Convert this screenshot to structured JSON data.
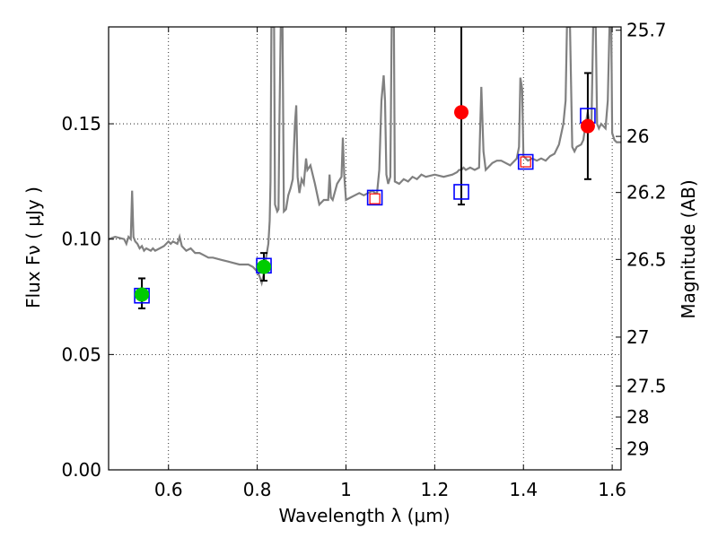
{
  "chart_data": {
    "type": "scatter",
    "title": "",
    "xlabel": "Wavelength  λ (μm)",
    "ylabel_left": "Flux  Fν  ( μJy )",
    "ylabel_right": "Magnitude (AB)",
    "xlim": [
      0.465,
      1.62
    ],
    "ylim": [
      0.0,
      0.192
    ],
    "grid": "dotted",
    "x_ticks": [
      {
        "value": 0.6,
        "label": "0.6"
      },
      {
        "value": 0.8,
        "label": "0.8"
      },
      {
        "value": 1.0,
        "label": "1"
      },
      {
        "value": 1.2,
        "label": "1.2"
      },
      {
        "value": 1.4,
        "label": "1.4"
      },
      {
        "value": 1.6,
        "label": "1.6"
      }
    ],
    "y_ticks": [
      {
        "value": 0.0,
        "label": "0.00"
      },
      {
        "value": 0.05,
        "label": "0.05"
      },
      {
        "value": 0.1,
        "label": "0.10"
      },
      {
        "value": 0.15,
        "label": "0.15"
      }
    ],
    "mag_ticks": [
      {
        "value": 25.7,
        "label": "25.7"
      },
      {
        "value": 26.0,
        "label": "26"
      },
      {
        "value": 26.2,
        "label": "26.2"
      },
      {
        "value": 26.5,
        "label": "26.5"
      },
      {
        "value": 27.0,
        "label": "27"
      },
      {
        "value": 27.5,
        "label": "27.5"
      },
      {
        "value": 28.0,
        "label": "28"
      },
      {
        "value": 29.0,
        "label": "29"
      }
    ],
    "spectrum": {
      "name": "model-spectrum",
      "color": "#808080",
      "points": [
        [
          0.465,
          0.1
        ],
        [
          0.48,
          0.101
        ],
        [
          0.5,
          0.1
        ],
        [
          0.505,
          0.098
        ],
        [
          0.51,
          0.101
        ],
        [
          0.515,
          0.1
        ],
        [
          0.518,
          0.121
        ],
        [
          0.521,
          0.101
        ],
        [
          0.525,
          0.099
        ],
        [
          0.53,
          0.098
        ],
        [
          0.535,
          0.096
        ],
        [
          0.54,
          0.097
        ],
        [
          0.545,
          0.095
        ],
        [
          0.55,
          0.096
        ],
        [
          0.56,
          0.095
        ],
        [
          0.565,
          0.096
        ],
        [
          0.57,
          0.095
        ],
        [
          0.58,
          0.096
        ],
        [
          0.59,
          0.097
        ],
        [
          0.6,
          0.099
        ],
        [
          0.605,
          0.098
        ],
        [
          0.61,
          0.099
        ],
        [
          0.62,
          0.098
        ],
        [
          0.625,
          0.101
        ],
        [
          0.63,
          0.097
        ],
        [
          0.64,
          0.095
        ],
        [
          0.65,
          0.096
        ],
        [
          0.66,
          0.094
        ],
        [
          0.67,
          0.094
        ],
        [
          0.68,
          0.093
        ],
        [
          0.69,
          0.092
        ],
        [
          0.7,
          0.092
        ],
        [
          0.72,
          0.091
        ],
        [
          0.74,
          0.09
        ],
        [
          0.76,
          0.089
        ],
        [
          0.78,
          0.089
        ],
        [
          0.79,
          0.088
        ],
        [
          0.8,
          0.086
        ],
        [
          0.805,
          0.084
        ],
        [
          0.81,
          0.081
        ],
        [
          0.815,
          0.085
        ],
        [
          0.82,
          0.092
        ],
        [
          0.825,
          0.098
        ],
        [
          0.828,
          0.108
        ],
        [
          0.83,
          0.125
        ],
        [
          0.832,
          0.192
        ],
        [
          0.838,
          0.192
        ],
        [
          0.84,
          0.115
        ],
        [
          0.845,
          0.112
        ],
        [
          0.848,
          0.113
        ],
        [
          0.85,
          0.15
        ],
        [
          0.853,
          0.192
        ],
        [
          0.857,
          0.192
        ],
        [
          0.86,
          0.112
        ],
        [
          0.865,
          0.113
        ],
        [
          0.87,
          0.119
        ],
        [
          0.875,
          0.122
        ],
        [
          0.88,
          0.126
        ],
        [
          0.885,
          0.15
        ],
        [
          0.888,
          0.158
        ],
        [
          0.891,
          0.127
        ],
        [
          0.895,
          0.12
        ],
        [
          0.9,
          0.126
        ],
        [
          0.905,
          0.124
        ],
        [
          0.91,
          0.135
        ],
        [
          0.913,
          0.13
        ],
        [
          0.92,
          0.132
        ],
        [
          0.93,
          0.124
        ],
        [
          0.94,
          0.115
        ],
        [
          0.95,
          0.117
        ],
        [
          0.96,
          0.117
        ],
        [
          0.963,
          0.128
        ],
        [
          0.966,
          0.118
        ],
        [
          0.97,
          0.117
        ],
        [
          0.98,
          0.124
        ],
        [
          0.99,
          0.127
        ],
        [
          0.993,
          0.144
        ],
        [
          0.996,
          0.128
        ],
        [
          1.0,
          0.117
        ],
        [
          1.01,
          0.118
        ],
        [
          1.02,
          0.119
        ],
        [
          1.03,
          0.12
        ],
        [
          1.04,
          0.119
        ],
        [
          1.05,
          0.12
        ],
        [
          1.06,
          0.121
        ],
        [
          1.065,
          0.12
        ],
        [
          1.07,
          0.12
        ],
        [
          1.075,
          0.13
        ],
        [
          1.08,
          0.16
        ],
        [
          1.085,
          0.171
        ],
        [
          1.088,
          0.16
        ],
        [
          1.091,
          0.128
        ],
        [
          1.095,
          0.124
        ],
        [
          1.1,
          0.127
        ],
        [
          1.103,
          0.192
        ],
        [
          1.108,
          0.192
        ],
        [
          1.11,
          0.125
        ],
        [
          1.12,
          0.124
        ],
        [
          1.13,
          0.126
        ],
        [
          1.14,
          0.125
        ],
        [
          1.15,
          0.127
        ],
        [
          1.16,
          0.126
        ],
        [
          1.17,
          0.128
        ],
        [
          1.18,
          0.127
        ],
        [
          1.2,
          0.128
        ],
        [
          1.22,
          0.127
        ],
        [
          1.24,
          0.128
        ],
        [
          1.25,
          0.129
        ],
        [
          1.255,
          0.13
        ],
        [
          1.26,
          0.13
        ],
        [
          1.265,
          0.131
        ],
        [
          1.27,
          0.13
        ],
        [
          1.28,
          0.131
        ],
        [
          1.29,
          0.13
        ],
        [
          1.3,
          0.131
        ],
        [
          1.305,
          0.166
        ],
        [
          1.31,
          0.138
        ],
        [
          1.315,
          0.13
        ],
        [
          1.32,
          0.131
        ],
        [
          1.33,
          0.133
        ],
        [
          1.34,
          0.134
        ],
        [
          1.35,
          0.134
        ],
        [
          1.36,
          0.133
        ],
        [
          1.37,
          0.132
        ],
        [
          1.38,
          0.134
        ],
        [
          1.385,
          0.135
        ],
        [
          1.39,
          0.14
        ],
        [
          1.393,
          0.17
        ],
        [
          1.397,
          0.165
        ],
        [
          1.4,
          0.136
        ],
        [
          1.41,
          0.134
        ],
        [
          1.42,
          0.135
        ],
        [
          1.43,
          0.134
        ],
        [
          1.44,
          0.135
        ],
        [
          1.45,
          0.134
        ],
        [
          1.46,
          0.136
        ],
        [
          1.47,
          0.137
        ],
        [
          1.48,
          0.141
        ],
        [
          1.49,
          0.15
        ],
        [
          1.495,
          0.16
        ],
        [
          1.498,
          0.192
        ],
        [
          1.505,
          0.192
        ],
        [
          1.51,
          0.14
        ],
        [
          1.515,
          0.138
        ],
        [
          1.52,
          0.14
        ],
        [
          1.53,
          0.141
        ],
        [
          1.535,
          0.143
        ],
        [
          1.54,
          0.15
        ],
        [
          1.545,
          0.155
        ],
        [
          1.55,
          0.149
        ],
        [
          1.553,
          0.147
        ],
        [
          1.557,
          0.192
        ],
        [
          1.563,
          0.192
        ],
        [
          1.566,
          0.15
        ],
        [
          1.57,
          0.148
        ],
        [
          1.575,
          0.15
        ],
        [
          1.58,
          0.149
        ],
        [
          1.585,
          0.148
        ],
        [
          1.59,
          0.16
        ],
        [
          1.594,
          0.192
        ],
        [
          1.598,
          0.192
        ],
        [
          1.6,
          0.146
        ],
        [
          1.605,
          0.143
        ],
        [
          1.61,
          0.142
        ],
        [
          1.62,
          0.142
        ]
      ]
    },
    "observed_points": [
      {
        "name": "obs-point-1",
        "x": 0.54,
        "y": 0.076,
        "color": "#00cc00"
      },
      {
        "name": "obs-point-2",
        "x": 0.815,
        "y": 0.088,
        "color": "#00cc00"
      },
      {
        "name": "obs-point-3",
        "x": 1.26,
        "y": 0.155,
        "color": "#ff0000"
      },
      {
        "name": "obs-point-4",
        "x": 1.545,
        "y": 0.149,
        "color": "#ff0000"
      }
    ],
    "error_bars": [
      {
        "name": "error-bar-1",
        "x": 0.54,
        "low": 0.07,
        "high": 0.083
      },
      {
        "name": "error-bar-2",
        "x": 0.815,
        "low": 0.082,
        "high": 0.094
      },
      {
        "name": "error-bar-3",
        "x": 1.26,
        "low": 0.115,
        "high": 0.192
      },
      {
        "name": "error-bar-4",
        "x": 1.545,
        "low": 0.126,
        "high": 0.172
      }
    ],
    "model_boxes": [
      {
        "name": "model-box-1",
        "x": 0.54,
        "y": 0.0755,
        "color": "#0000ff"
      },
      {
        "name": "model-box-2",
        "x": 0.815,
        "y": 0.0885,
        "color": "#0000ff"
      },
      {
        "name": "model-box-3",
        "x": 1.065,
        "y": 0.118,
        "color": "#0000ff"
      },
      {
        "name": "model-box-4",
        "x": 1.26,
        "y": 0.1205,
        "color": "#0000ff"
      },
      {
        "name": "model-box-5",
        "x": 1.405,
        "y": 0.1335,
        "color": "#0000ff"
      },
      {
        "name": "model-box-6",
        "x": 1.545,
        "y": 0.1535,
        "color": "#0000ff"
      }
    ],
    "observed_boxes": [
      {
        "name": "obs-box-1",
        "x": 1.065,
        "y": 0.1175,
        "color": "#ff0000"
      },
      {
        "name": "obs-box-2",
        "x": 1.405,
        "y": 0.1335,
        "color": "#ff0000"
      }
    ]
  }
}
